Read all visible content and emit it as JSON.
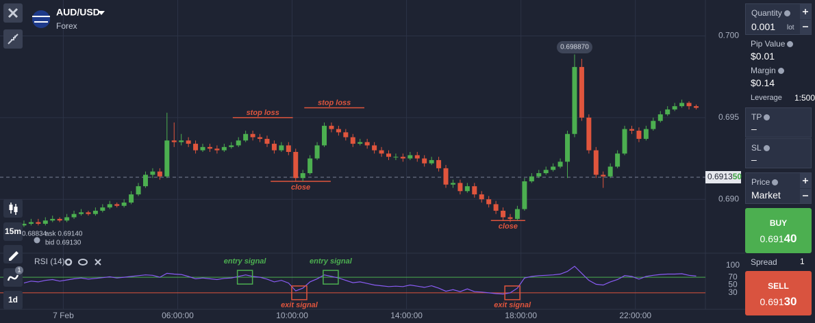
{
  "header": {
    "symbol": "AUD/USD",
    "market": "Forex"
  },
  "toolbar": {
    "timeframe": "15m",
    "period": "1d",
    "indicator_count": "1"
  },
  "chart_data": {
    "type": "candlestick",
    "candles": [
      [
        0.6884,
        0.6887,
        0.6883,
        0.6885
      ],
      [
        0.6885,
        0.6888,
        0.6884,
        0.6886
      ],
      [
        0.6886,
        0.6888,
        0.6884,
        0.6885
      ],
      [
        0.6885,
        0.6889,
        0.6884,
        0.6887
      ],
      [
        0.6887,
        0.689,
        0.6886,
        0.6888
      ],
      [
        0.6888,
        0.6889,
        0.6886,
        0.6887
      ],
      [
        0.6887,
        0.6891,
        0.6886,
        0.6889
      ],
      [
        0.6889,
        0.6893,
        0.6888,
        0.6891
      ],
      [
        0.6891,
        0.6894,
        0.689,
        0.6892
      ],
      [
        0.6892,
        0.6893,
        0.689,
        0.6891
      ],
      [
        0.6891,
        0.6895,
        0.689,
        0.6893
      ],
      [
        0.6893,
        0.6897,
        0.6892,
        0.6895
      ],
      [
        0.6895,
        0.6899,
        0.6894,
        0.6897
      ],
      [
        0.6897,
        0.6898,
        0.6895,
        0.6896
      ],
      [
        0.6896,
        0.69,
        0.6895,
        0.6898
      ],
      [
        0.6898,
        0.6905,
        0.6897,
        0.6903
      ],
      [
        0.6903,
        0.691,
        0.6902,
        0.6908
      ],
      [
        0.6908,
        0.6917,
        0.6907,
        0.6915
      ],
      [
        0.6915,
        0.6919,
        0.6913,
        0.6917
      ],
      [
        0.6917,
        0.6919,
        0.6912,
        0.6914
      ],
      [
        0.6914,
        0.6953,
        0.6913,
        0.6936
      ],
      [
        0.6936,
        0.6947,
        0.6932,
        0.6935
      ],
      [
        0.6935,
        0.694,
        0.6933,
        0.6936
      ],
      [
        0.6936,
        0.6938,
        0.6932,
        0.6934
      ],
      [
        0.6934,
        0.6936,
        0.6928,
        0.693
      ],
      [
        0.693,
        0.6934,
        0.6929,
        0.6932
      ],
      [
        0.6932,
        0.6934,
        0.6929,
        0.6931
      ],
      [
        0.6931,
        0.6933,
        0.6928,
        0.693
      ],
      [
        0.693,
        0.6934,
        0.6929,
        0.6932
      ],
      [
        0.6932,
        0.6935,
        0.6931,
        0.6933
      ],
      [
        0.6933,
        0.6938,
        0.6932,
        0.6936
      ],
      [
        0.6936,
        0.6942,
        0.6935,
        0.694
      ],
      [
        0.694,
        0.6942,
        0.6936,
        0.6938
      ],
      [
        0.6938,
        0.694,
        0.6935,
        0.6937
      ],
      [
        0.6937,
        0.6939,
        0.6932,
        0.6934
      ],
      [
        0.6934,
        0.6936,
        0.6928,
        0.693
      ],
      [
        0.693,
        0.6935,
        0.6929,
        0.6933
      ],
      [
        0.6933,
        0.6935,
        0.6927,
        0.6929
      ],
      [
        0.6929,
        0.6931,
        0.6911,
        0.6913
      ],
      [
        0.6913,
        0.6918,
        0.6911,
        0.6916
      ],
      [
        0.6916,
        0.6927,
        0.6915,
        0.6925
      ],
      [
        0.6925,
        0.6935,
        0.6924,
        0.6933
      ],
      [
        0.6933,
        0.6947,
        0.6932,
        0.6945
      ],
      [
        0.6945,
        0.6947,
        0.6941,
        0.6943
      ],
      [
        0.6943,
        0.6945,
        0.6939,
        0.6941
      ],
      [
        0.6941,
        0.6943,
        0.6936,
        0.6938
      ],
      [
        0.6938,
        0.694,
        0.6932,
        0.6934
      ],
      [
        0.6934,
        0.6937,
        0.6933,
        0.6935
      ],
      [
        0.6935,
        0.6937,
        0.6931,
        0.6933
      ],
      [
        0.6933,
        0.6935,
        0.6928,
        0.693
      ],
      [
        0.693,
        0.6932,
        0.6926,
        0.6928
      ],
      [
        0.6928,
        0.693,
        0.6924,
        0.6926
      ],
      [
        0.6926,
        0.6928,
        0.6924,
        0.6926
      ],
      [
        0.6926,
        0.6928,
        0.6923,
        0.6925
      ],
      [
        0.6925,
        0.6929,
        0.6924,
        0.6927
      ],
      [
        0.6927,
        0.6929,
        0.6923,
        0.6925
      ],
      [
        0.6925,
        0.6927,
        0.692,
        0.6922
      ],
      [
        0.6922,
        0.6926,
        0.6921,
        0.6924
      ],
      [
        0.6924,
        0.6926,
        0.6917,
        0.6919
      ],
      [
        0.6919,
        0.6921,
        0.6907,
        0.6909
      ],
      [
        0.6909,
        0.6912,
        0.6907,
        0.691
      ],
      [
        0.691,
        0.6912,
        0.6903,
        0.6905
      ],
      [
        0.6905,
        0.691,
        0.6904,
        0.6908
      ],
      [
        0.6908,
        0.691,
        0.6901,
        0.6903
      ],
      [
        0.6903,
        0.6905,
        0.6898,
        0.69
      ],
      [
        0.69,
        0.6902,
        0.6895,
        0.6897
      ],
      [
        0.6897,
        0.6899,
        0.6891,
        0.6893
      ],
      [
        0.6893,
        0.6895,
        0.6887,
        0.6889
      ],
      [
        0.6889,
        0.6891,
        0.6886,
        0.6888
      ],
      [
        0.6888,
        0.6896,
        0.6887,
        0.6894
      ],
      [
        0.6894,
        0.6913,
        0.6893,
        0.6911
      ],
      [
        0.6911,
        0.6916,
        0.691,
        0.6914
      ],
      [
        0.6914,
        0.6918,
        0.6913,
        0.6916
      ],
      [
        0.6916,
        0.692,
        0.6915,
        0.6918
      ],
      [
        0.6918,
        0.6922,
        0.6917,
        0.692
      ],
      [
        0.692,
        0.6925,
        0.6919,
        0.6923
      ],
      [
        0.6923,
        0.6942,
        0.6913,
        0.694
      ],
      [
        0.694,
        0.69887,
        0.6938,
        0.6981
      ],
      [
        0.6981,
        0.6986,
        0.6948,
        0.695
      ],
      [
        0.695,
        0.6952,
        0.6928,
        0.693
      ],
      [
        0.693,
        0.6932,
        0.6913,
        0.6915
      ],
      [
        0.6915,
        0.6917,
        0.6907,
        0.6914
      ],
      [
        0.6914,
        0.6922,
        0.6913,
        0.692
      ],
      [
        0.692,
        0.693,
        0.6919,
        0.6928
      ],
      [
        0.6928,
        0.6945,
        0.6927,
        0.6943
      ],
      [
        0.6943,
        0.6945,
        0.694,
        0.6942
      ],
      [
        0.6942,
        0.6944,
        0.6935,
        0.6937
      ],
      [
        0.6937,
        0.6945,
        0.6936,
        0.6943
      ],
      [
        0.6943,
        0.695,
        0.6942,
        0.6948
      ],
      [
        0.6948,
        0.6954,
        0.6947,
        0.6952
      ],
      [
        0.6952,
        0.6957,
        0.6951,
        0.6955
      ],
      [
        0.6955,
        0.6959,
        0.6954,
        0.6957
      ],
      [
        0.6957,
        0.6961,
        0.6956,
        0.6959
      ],
      [
        0.6959,
        0.696,
        0.6955,
        0.6957
      ],
      [
        0.6957,
        0.6958,
        0.6955,
        0.6956
      ]
    ],
    "colors": {
      "up": "#4caf50",
      "down": "#e0553d"
    },
    "xlim": [
      -3.35,
      95.2
    ],
    "xticks": [
      {
        "value": 5.5,
        "label": "7 Feb"
      },
      {
        "value": 21.5,
        "label": "06:00:00"
      },
      {
        "value": 37.5,
        "label": "10:00:00"
      },
      {
        "value": 53.5,
        "label": "14:00:00"
      },
      {
        "value": 69.5,
        "label": "18:00:00"
      },
      {
        "value": 85.5,
        "label": "22:00:00"
      }
    ],
    "ylim": [
      0.6867,
      0.7022
    ],
    "yticks": [
      {
        "value": 0.69,
        "label": "0.690"
      },
      {
        "value": 0.695,
        "label": "0.695"
      },
      {
        "value": 0.7,
        "label": "0.700"
      }
    ],
    "grid": true,
    "current_price": {
      "value": 0.69135,
      "label": [
        "0.6913",
        "50"
      ]
    },
    "high_marker": {
      "value": 0.69887,
      "label": "0.698870",
      "x": 77
    },
    "crosshair_price": "0.68834",
    "ask": "ask 0.69140",
    "bid": "bid 0.69130",
    "annotations": [
      {
        "label": "stop loss",
        "value": 0.695,
        "from": 29.2,
        "to": 37.6,
        "label_side": "above"
      },
      {
        "label": "stop loss",
        "value": 0.6956,
        "from": 39.2,
        "to": 47.6,
        "label_side": "above"
      },
      {
        "label": "close",
        "value": 0.6911,
        "from": 34.5,
        "to": 42.9,
        "label_side": "below"
      },
      {
        "label": "close",
        "value": 0.6887,
        "from": 65.3,
        "to": 70.1,
        "label_side": "below"
      }
    ],
    "annotation_color": "#e0553d",
    "rsi": {
      "title": "RSI (14)",
      "color": "#8a5cf5",
      "ylim": [
        0,
        100
      ],
      "yticks": [
        30,
        50,
        70,
        100
      ],
      "upper": 70,
      "lower": 30,
      "upper_color": "#4caf50",
      "lower_color": "#e0553d",
      "values": [
        55,
        60,
        58,
        62,
        64,
        60,
        63,
        66,
        68,
        65,
        67,
        69,
        71,
        68,
        70,
        72,
        74,
        76,
        75,
        70,
        80,
        78,
        77,
        72,
        66,
        68,
        66,
        64,
        67,
        68,
        72,
        76,
        72,
        70,
        65,
        58,
        62,
        55,
        35,
        42,
        58,
        66,
        76,
        72,
        68,
        62,
        56,
        58,
        54,
        50,
        48,
        46,
        47,
        46,
        50,
        47,
        44,
        48,
        42,
        34,
        38,
        33,
        40,
        33,
        32,
        30,
        28,
        27,
        30,
        42,
        68,
        72,
        74,
        75,
        76,
        78,
        85,
        98,
        80,
        62,
        52,
        50,
        58,
        64,
        74,
        72,
        65,
        72,
        75,
        77,
        78,
        78,
        79,
        75,
        73
      ]
    },
    "signals": [
      {
        "label": "entry signal",
        "x": 30.9,
        "value": 70,
        "color": "#4caf50",
        "label_side": "above"
      },
      {
        "label": "exit signal",
        "x": 38.5,
        "value": 30,
        "color": "#e0553d",
        "label_side": "below"
      },
      {
        "label": "entry signal",
        "x": 42.9,
        "value": 70,
        "color": "#4caf50",
        "label_side": "above"
      },
      {
        "label": "exit signal",
        "x": 68.3,
        "value": 30,
        "color": "#e0553d",
        "label_side": "below"
      }
    ]
  },
  "order": {
    "quantity": {
      "label": "Quantity",
      "value": "0.001",
      "unit": "lot"
    },
    "pip_value": {
      "label": "Pip Value",
      "value": "$0.01"
    },
    "margin": {
      "label": "Margin",
      "value": "$0.14"
    },
    "leverage": {
      "label": "Leverage",
      "value": "1:500"
    },
    "tp": {
      "label": "TP",
      "value": "–"
    },
    "sl": {
      "label": "SL",
      "value": "–"
    },
    "price": {
      "label": "Price",
      "value": "Market"
    },
    "buy": {
      "label": "BUY",
      "price": [
        "0.691",
        "40"
      ]
    },
    "spread": {
      "label": "Spread",
      "value": "1"
    },
    "sell": {
      "label": "SELL",
      "price": [
        "0.691",
        "30"
      ]
    }
  }
}
